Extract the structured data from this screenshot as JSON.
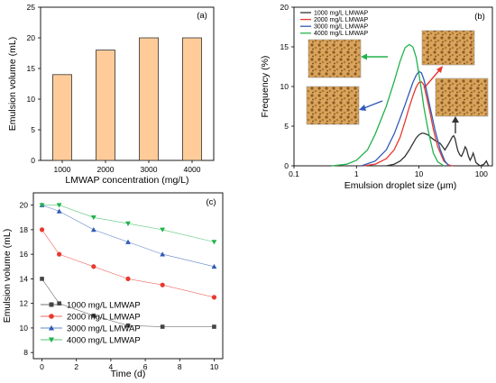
{
  "chart_data": [
    {
      "panel": "(a)",
      "type": "bar",
      "categories": [
        "1000",
        "2000",
        "3000",
        "4000"
      ],
      "values": [
        14,
        18,
        20,
        20
      ],
      "xlabel": "LMWAP concentration (mg/L)",
      "ylabel": "Emulsion volume (mL)",
      "ylim": [
        0,
        25
      ],
      "yticks": [
        "0",
        "5",
        "10",
        "15",
        "20",
        "25"
      ],
      "bar_color": "#FFCC99",
      "bar_edge_color": "#333333",
      "grid": false
    },
    {
      "panel": "(b)",
      "type": "line",
      "xscale": "log",
      "xlabel": "Emulsion droplet size (μm)",
      "ylabel": "Frequency (%)",
      "xlim": [
        0.1,
        150
      ],
      "ylim": [
        0,
        20
      ],
      "xticks": [
        "0.1",
        "1",
        "10",
        "100"
      ],
      "yticks": [
        "0",
        "5",
        "10",
        "15",
        "20"
      ],
      "legend_position": "top-left",
      "grid": false,
      "series": [
        {
          "name": "1000 mg/L LMWAP",
          "color": "#333333",
          "points": [
            [
              3,
              0
            ],
            [
              4,
              0.2
            ],
            [
              5,
              0.6
            ],
            [
              6,
              1.2
            ],
            [
              7,
              2
            ],
            [
              8,
              2.8
            ],
            [
              9,
              3.5
            ],
            [
              10,
              3.9
            ],
            [
              11,
              4.1
            ],
            [
              12,
              4.1
            ],
            [
              14,
              3.9
            ],
            [
              16,
              3.5
            ],
            [
              18,
              3.2
            ],
            [
              20,
              3.0
            ],
            [
              22,
              2.8
            ],
            [
              24,
              2.4
            ],
            [
              26,
              2.0
            ],
            [
              28,
              2.4
            ],
            [
              30,
              2.8
            ],
            [
              32,
              3.2
            ],
            [
              34,
              3.6
            ],
            [
              36,
              3.8
            ],
            [
              38,
              3.4
            ],
            [
              40,
              2.6
            ],
            [
              42,
              1.9
            ],
            [
              45,
              1.4
            ],
            [
              48,
              1.2
            ],
            [
              52,
              1.8
            ],
            [
              55,
              2.4
            ],
            [
              58,
              2.1
            ],
            [
              62,
              1.2
            ],
            [
              66,
              0.7
            ],
            [
              70,
              1.1
            ],
            [
              74,
              1.6
            ],
            [
              78,
              1.0
            ],
            [
              82,
              0.4
            ],
            [
              88,
              0.2
            ],
            [
              95,
              0
            ],
            [
              110,
              0.2
            ],
            [
              120,
              0.6
            ],
            [
              130,
              0
            ]
          ]
        },
        {
          "name": "2000 mg/L LMWAP",
          "color": "#E8382F",
          "points": [
            [
              1.3,
              0
            ],
            [
              2,
              0.2
            ],
            [
              3,
              0.9
            ],
            [
              4,
              2
            ],
            [
              5,
              3.6
            ],
            [
              6,
              5.6
            ],
            [
              7,
              7.4
            ],
            [
              8,
              8.8
            ],
            [
              9,
              9.9
            ],
            [
              10,
              10.5
            ],
            [
              11,
              10.6
            ],
            [
              12,
              10.2
            ],
            [
              13,
              9.0
            ],
            [
              15,
              6.8
            ],
            [
              17,
              4.6
            ],
            [
              20,
              2.4
            ],
            [
              25,
              0.6
            ],
            [
              30,
              0.1
            ],
            [
              35,
              0
            ]
          ]
        },
        {
          "name": "3000 mg/L LMWAP",
          "color": "#2F5BB7",
          "points": [
            [
              1.2,
              0
            ],
            [
              2,
              0.6
            ],
            [
              3,
              2
            ],
            [
              4,
              4
            ],
            [
              5,
              6
            ],
            [
              6,
              7.7
            ],
            [
              7,
              9.2
            ],
            [
              8,
              10.5
            ],
            [
              9,
              11.4
            ],
            [
              10,
              11.9
            ],
            [
              11,
              11.7
            ],
            [
              12,
              10.9
            ],
            [
              13,
              9.8
            ],
            [
              15,
              7.5
            ],
            [
              18,
              4.6
            ],
            [
              22,
              2.0
            ],
            [
              26,
              0.6
            ],
            [
              30,
              0
            ]
          ]
        },
        {
          "name": "4000 mg/L LMWAP",
          "color": "#22B24C",
          "points": [
            [
              0.4,
              0
            ],
            [
              0.7,
              0.2
            ],
            [
              1,
              0.7
            ],
            [
              1.5,
              2.0
            ],
            [
              2,
              4.0
            ],
            [
              3,
              7.5
            ],
            [
              4,
              10.6
            ],
            [
              5,
              13.2
            ],
            [
              6,
              14.9
            ],
            [
              7,
              15.3
            ],
            [
              8,
              15.0
            ],
            [
              9,
              13.7
            ],
            [
              10,
              11.6
            ],
            [
              11,
              9.5
            ],
            [
              12,
              7.4
            ],
            [
              14,
              4.5
            ],
            [
              17,
              1.6
            ],
            [
              20,
              0.5
            ],
            [
              25,
              0
            ]
          ]
        }
      ]
    },
    {
      "panel": "(c)",
      "type": "line",
      "xlabel": "Time (d)",
      "ylabel": "Emulsion volume (mL)",
      "xlim": [
        -0.5,
        10.5
      ],
      "ylim": [
        7.5,
        21
      ],
      "xticks": [
        "0",
        "2",
        "4",
        "6",
        "8",
        "10"
      ],
      "yticks": [
        "8",
        "10",
        "12",
        "14",
        "16",
        "18",
        "20"
      ],
      "legend_position": "bottom-left",
      "grid": false,
      "series": [
        {
          "name": "1000 mg/L LMWAP",
          "color": "#444444",
          "marker": "square",
          "x": [
            0,
            1,
            3,
            5,
            7,
            10
          ],
          "y": [
            14,
            12,
            11,
            10.2,
            10.1,
            10.1
          ]
        },
        {
          "name": "2000 mg/L LMWAP",
          "color": "#E8382F",
          "marker": "circle",
          "x": [
            0,
            1,
            3,
            5,
            7,
            10
          ],
          "y": [
            18,
            16,
            15,
            14,
            13.5,
            12.5
          ]
        },
        {
          "name": "3000 mg/L LMWAP",
          "color": "#2F5BB7",
          "marker": "triangle-up",
          "x": [
            0,
            1,
            3,
            5,
            7,
            10
          ],
          "y": [
            20,
            19.5,
            18,
            17,
            16,
            15
          ]
        },
        {
          "name": "4000 mg/L LMWAP",
          "color": "#22B24C",
          "marker": "triangle-down",
          "x": [
            0,
            1,
            3,
            5,
            7,
            10
          ],
          "y": [
            20,
            20,
            19,
            18.5,
            18,
            17
          ]
        }
      ]
    }
  ]
}
